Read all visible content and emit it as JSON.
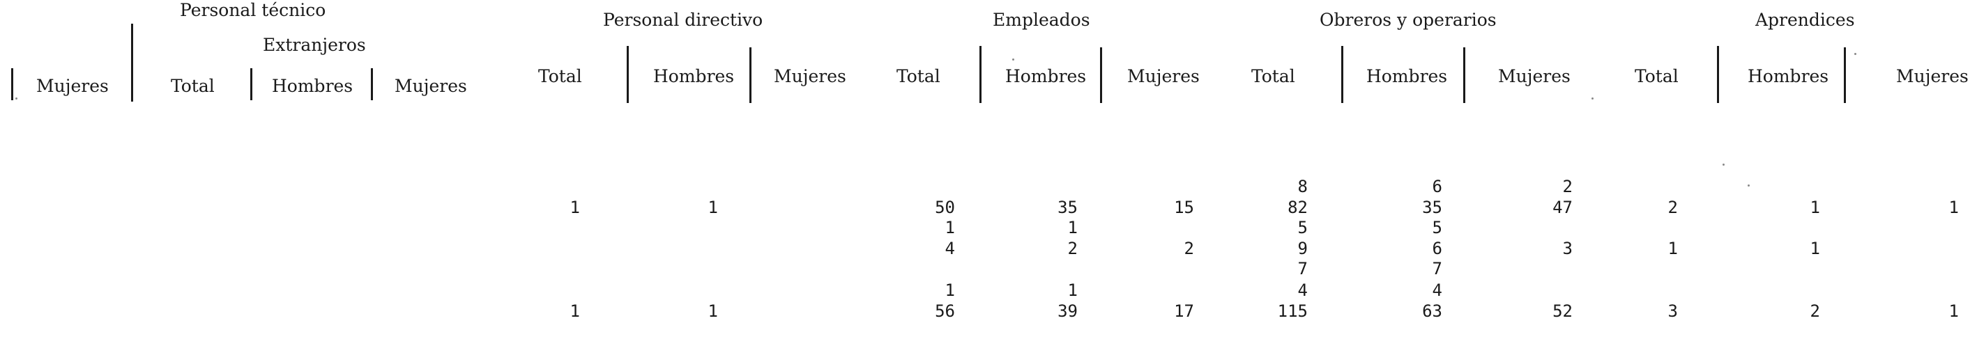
{
  "groups": {
    "personal_tecnico": "Personal técnico",
    "extranjeros": "Extranjeros",
    "personal_directivo": "Personal directivo",
    "empleados": "Empleados",
    "obreros": "Obreros y operarios",
    "aprendices": "Aprendices"
  },
  "columns": {
    "c0": "Mujeres",
    "c1": "Total",
    "c2": "Hombres",
    "c3": "Mujeres",
    "c4": "Total",
    "c5": "Hombres",
    "c6": "Mujeres",
    "c7": "Total",
    "c8": "Hombres",
    "c9": "Mujeres",
    "c10": "Total",
    "c11": "Hombres",
    "c12": "Mujeres",
    "c13": "Total",
    "c14": "Hombres",
    "c15": "Mujeres"
  },
  "rows": [
    {
      "dir_total": "",
      "dir_h": "",
      "emp_total": "",
      "emp_h": "",
      "emp_m": "",
      "obr_total": "8",
      "obr_h": "6",
      "obr_m": "2",
      "apr_total": "",
      "apr_h": "",
      "apr_m": ""
    },
    {
      "dir_total": "1",
      "dir_h": "1",
      "emp_total": "50",
      "emp_h": "35",
      "emp_m": "15",
      "obr_total": "82",
      "obr_h": "35",
      "obr_m": "47",
      "apr_total": "2",
      "apr_h": "1",
      "apr_m": "1"
    },
    {
      "dir_total": "",
      "dir_h": "",
      "emp_total": "1",
      "emp_h": "1",
      "emp_m": "",
      "obr_total": "5",
      "obr_h": "5",
      "obr_m": "",
      "apr_total": "",
      "apr_h": "",
      "apr_m": ""
    },
    {
      "dir_total": "",
      "dir_h": "",
      "emp_total": "4",
      "emp_h": "2",
      "emp_m": "2",
      "obr_total": "9",
      "obr_h": "6",
      "obr_m": "3",
      "apr_total": "1",
      "apr_h": "1",
      "apr_m": ""
    },
    {
      "dir_total": "",
      "dir_h": "",
      "emp_total": "",
      "emp_h": "",
      "emp_m": "",
      "obr_total": "7",
      "obr_h": "7",
      "obr_m": "",
      "apr_total": "",
      "apr_h": "",
      "apr_m": ""
    },
    {
      "dir_total": "",
      "dir_h": "",
      "emp_total": "1",
      "emp_h": "1",
      "emp_m": "",
      "obr_total": "4",
      "obr_h": "4",
      "obr_m": "",
      "apr_total": "",
      "apr_h": "",
      "apr_m": ""
    },
    {
      "dir_total": "1",
      "dir_h": "1",
      "emp_total": "56",
      "emp_h": "39",
      "emp_m": "17",
      "obr_total": "115",
      "obr_h": "63",
      "obr_m": "52",
      "apr_total": "3",
      "apr_h": "2",
      "apr_m": "1"
    }
  ]
}
